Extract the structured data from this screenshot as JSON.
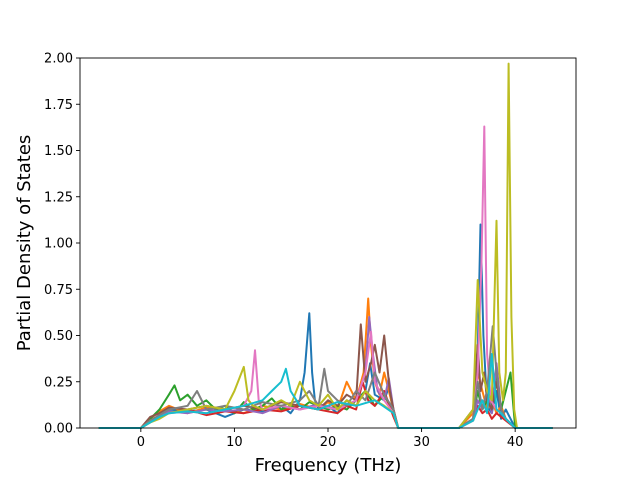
{
  "chart_data": {
    "type": "line",
    "title": "",
    "xlabel": "Frequency (THz)",
    "ylabel": "Partial Density of States",
    "xlim": [
      -6.5,
      46.5
    ],
    "ylim": [
      0.0,
      2.0
    ],
    "xticks": [
      0,
      10,
      20,
      30,
      40
    ],
    "yticks": [
      0.0,
      0.25,
      0.5,
      0.75,
      1.0,
      1.25,
      1.5,
      1.75,
      2.0
    ],
    "xtick_labels": [
      "0",
      "10",
      "20",
      "30",
      "40"
    ],
    "ytick_labels": [
      "0.00",
      "0.25",
      "0.50",
      "0.75",
      "1.00",
      "1.25",
      "1.50",
      "1.75",
      "2.00"
    ],
    "grid": false,
    "legend": "none",
    "series": [
      {
        "color": "#1f77b4",
        "x": [
          -4.5,
          0,
          1,
          2,
          3,
          5,
          7,
          9,
          11,
          13,
          15,
          16,
          17,
          17.5,
          18,
          18.3,
          18.6,
          19,
          20,
          21,
          22,
          23,
          24,
          24.5,
          25,
          26,
          26.5,
          27,
          27.5,
          28,
          34,
          35.5,
          36,
          36.3,
          36.6,
          37,
          37.5,
          38,
          38.5,
          39,
          40,
          44
        ],
        "y": [
          0,
          0,
          0.04,
          0.07,
          0.1,
          0.09,
          0.1,
          0.06,
          0.1,
          0.09,
          0.12,
          0.08,
          0.15,
          0.3,
          0.62,
          0.3,
          0.15,
          0.1,
          0.12,
          0.08,
          0.15,
          0.12,
          0.2,
          0.35,
          0.18,
          0.15,
          0.22,
          0.08,
          0,
          0,
          0,
          0.05,
          0.4,
          1.1,
          0.5,
          0.12,
          0.08,
          0.2,
          0.05,
          0.1,
          0,
          0
        ]
      },
      {
        "color": "#ff7f0e",
        "x": [
          -4.5,
          0,
          1,
          2,
          3,
          5,
          7,
          9,
          11,
          13,
          15,
          17,
          19,
          20,
          21,
          22,
          23,
          23.8,
          24.3,
          24.6,
          25,
          25.5,
          26,
          27,
          27.5,
          28,
          34,
          35.5,
          36,
          36.5,
          37,
          37.5,
          38,
          38.5,
          39,
          40,
          44
        ],
        "y": [
          0,
          0,
          0.05,
          0.09,
          0.12,
          0.08,
          0.11,
          0.1,
          0.08,
          0.12,
          0.1,
          0.13,
          0.1,
          0.14,
          0.1,
          0.25,
          0.15,
          0.3,
          0.7,
          0.45,
          0.25,
          0.18,
          0.3,
          0.1,
          0,
          0,
          0,
          0.08,
          0.3,
          0.2,
          0.1,
          0.15,
          0.08,
          0.12,
          0.05,
          0,
          0
        ]
      },
      {
        "color": "#2ca02c",
        "x": [
          -4.5,
          0,
          1,
          2,
          3,
          3.6,
          4.2,
          5,
          6,
          7,
          8,
          9,
          10,
          11,
          12,
          13,
          14,
          15,
          16,
          17,
          18,
          19,
          20,
          21,
          22,
          23,
          24,
          25,
          26,
          27,
          27.5,
          28,
          34,
          35.5,
          36,
          36.5,
          37,
          37.5,
          38,
          38.5,
          39,
          39.5,
          40,
          44
        ],
        "y": [
          0,
          0,
          0.05,
          0.1,
          0.18,
          0.23,
          0.15,
          0.18,
          0.12,
          0.15,
          0.1,
          0.12,
          0.08,
          0.14,
          0.1,
          0.12,
          0.16,
          0.1,
          0.12,
          0.1,
          0.14,
          0.12,
          0.1,
          0.12,
          0.1,
          0.15,
          0.2,
          0.12,
          0.18,
          0.08,
          0,
          0,
          0,
          0.05,
          0.2,
          0.1,
          0.15,
          0.12,
          0.3,
          0.1,
          0.2,
          0.3,
          0,
          0
        ]
      },
      {
        "color": "#d62728",
        "x": [
          -4.5,
          0,
          1,
          2,
          3,
          5,
          7,
          9,
          11,
          13,
          15,
          17,
          19,
          21,
          22,
          23,
          23.7,
          24.3,
          25,
          26,
          27,
          27.5,
          28,
          34,
          35.5,
          36,
          36.5,
          37,
          37.5,
          38,
          39,
          40,
          44
        ],
        "y": [
          0,
          0,
          0.03,
          0.06,
          0.08,
          0.1,
          0.07,
          0.09,
          0.08,
          0.1,
          0.09,
          0.12,
          0.1,
          0.08,
          0.12,
          0.1,
          0.25,
          0.15,
          0.12,
          0.2,
          0.06,
          0,
          0,
          0,
          0.04,
          0.12,
          0.08,
          0.1,
          0.05,
          0.08,
          0.04,
          0,
          0
        ]
      },
      {
        "color": "#9467bd",
        "x": [
          -4.5,
          0,
          1,
          2,
          3,
          5,
          7,
          9,
          11,
          13,
          15,
          17,
          19,
          21,
          23,
          24,
          24.4,
          24.8,
          25.3,
          26,
          26.5,
          27,
          27.5,
          28,
          34,
          35.5,
          36,
          36.5,
          37,
          37.5,
          38,
          38.5,
          39,
          40,
          44
        ],
        "y": [
          0,
          0,
          0.03,
          0.07,
          0.09,
          0.08,
          0.1,
          0.09,
          0.1,
          0.08,
          0.12,
          0.1,
          0.13,
          0.1,
          0.15,
          0.3,
          0.6,
          0.4,
          0.2,
          0.15,
          0.27,
          0.1,
          0,
          0,
          0,
          0.05,
          0.15,
          0.1,
          0.2,
          0.08,
          0.35,
          0.1,
          0.05,
          0,
          0
        ]
      },
      {
        "color": "#8c564b",
        "x": [
          -4.5,
          0,
          1,
          2,
          3,
          5,
          7,
          9,
          11,
          13,
          15,
          17,
          19,
          20,
          21,
          22,
          23,
          23.5,
          24,
          24.6,
          25,
          25.5,
          26,
          26.6,
          27,
          27.5,
          28,
          34,
          35.5,
          36,
          36.3,
          36.7,
          37,
          37.5,
          38,
          38.5,
          39,
          40,
          44
        ],
        "y": [
          0,
          0,
          0.06,
          0.08,
          0.11,
          0.1,
          0.12,
          0.1,
          0.12,
          0.1,
          0.14,
          0.12,
          0.1,
          0.15,
          0.12,
          0.18,
          0.15,
          0.56,
          0.25,
          0.35,
          0.45,
          0.3,
          0.5,
          0.2,
          0.1,
          0,
          0,
          0,
          0.1,
          0.45,
          0.2,
          0.3,
          0.15,
          0.1,
          0.25,
          0.1,
          0.05,
          0,
          0
        ]
      },
      {
        "color": "#e377c2",
        "x": [
          -4.5,
          0,
          1,
          2,
          3,
          5,
          7,
          9,
          11,
          11.8,
          12.2,
          12.6,
          13,
          15,
          17,
          19,
          21,
          23,
          24,
          24.6,
          25,
          26,
          27,
          27.5,
          28,
          34,
          35.5,
          36,
          36.4,
          36.7,
          37,
          37.4,
          38,
          38.5,
          39,
          40,
          44
        ],
        "y": [
          0,
          0,
          0.04,
          0.06,
          0.08,
          0.09,
          0.08,
          0.1,
          0.12,
          0.2,
          0.42,
          0.15,
          0.1,
          0.12,
          0.1,
          0.12,
          0.1,
          0.15,
          0.3,
          0.52,
          0.25,
          0.15,
          0.08,
          0,
          0,
          0,
          0.05,
          0.3,
          0.9,
          1.63,
          0.4,
          0.15,
          0.1,
          0.08,
          0.05,
          0,
          0
        ]
      },
      {
        "color": "#7f7f7f",
        "x": [
          -4.5,
          0,
          1,
          2,
          3,
          5,
          6,
          7,
          9,
          11,
          13,
          15,
          17,
          18,
          19,
          19.6,
          20,
          21,
          22,
          23,
          24,
          25,
          26,
          27,
          27.5,
          28,
          34,
          35.5,
          36,
          36.5,
          37,
          37.6,
          38,
          38.5,
          39,
          40,
          44
        ],
        "y": [
          0,
          0,
          0.04,
          0.07,
          0.1,
          0.12,
          0.2,
          0.1,
          0.12,
          0.1,
          0.14,
          0.12,
          0.15,
          0.2,
          0.12,
          0.32,
          0.2,
          0.15,
          0.12,
          0.2,
          0.15,
          0.3,
          0.18,
          0.1,
          0,
          0,
          0,
          0.05,
          0.25,
          0.1,
          0.2,
          0.55,
          0.3,
          0.1,
          0.05,
          0,
          0
        ]
      },
      {
        "color": "#bcbd22",
        "x": [
          -4.5,
          0,
          1,
          2,
          3,
          5,
          7,
          9,
          10,
          11,
          11.5,
          12,
          13,
          15,
          16,
          17,
          18,
          19,
          20,
          21,
          22,
          23,
          24,
          25,
          26,
          27,
          27.5,
          28,
          34,
          35.5,
          36,
          36.5,
          37,
          37.5,
          38,
          38.3,
          38.7,
          39,
          39.3,
          39.6,
          39.9,
          40.2,
          44
        ],
        "y": [
          0,
          0,
          0.03,
          0.05,
          0.08,
          0.1,
          0.12,
          0.1,
          0.2,
          0.33,
          0.15,
          0.12,
          0.1,
          0.15,
          0.12,
          0.25,
          0.15,
          0.12,
          0.18,
          0.1,
          0.15,
          0.12,
          0.2,
          0.15,
          0.12,
          0.08,
          0,
          0,
          0,
          0.1,
          0.8,
          0.3,
          0.2,
          0.15,
          1.12,
          0.3,
          0.15,
          0.3,
          1.97,
          0.6,
          0.1,
          0,
          0
        ]
      },
      {
        "color": "#17becf",
        "x": [
          -4.5,
          0,
          1,
          2,
          3,
          5,
          7,
          9,
          11,
          13,
          14,
          15,
          15.5,
          16,
          17,
          19,
          21,
          23,
          25,
          27,
          27.5,
          28,
          34,
          35.5,
          36,
          36.5,
          37,
          37.5,
          38,
          38.5,
          39,
          40,
          44
        ],
        "y": [
          0,
          0,
          0.03,
          0.06,
          0.08,
          0.09,
          0.08,
          0.1,
          0.12,
          0.15,
          0.2,
          0.25,
          0.32,
          0.2,
          0.12,
          0.1,
          0.14,
          0.12,
          0.15,
          0.08,
          0,
          0,
          0,
          0.04,
          0.1,
          0.15,
          0.08,
          0.4,
          0.1,
          0.08,
          0.05,
          0,
          0
        ]
      }
    ]
  }
}
